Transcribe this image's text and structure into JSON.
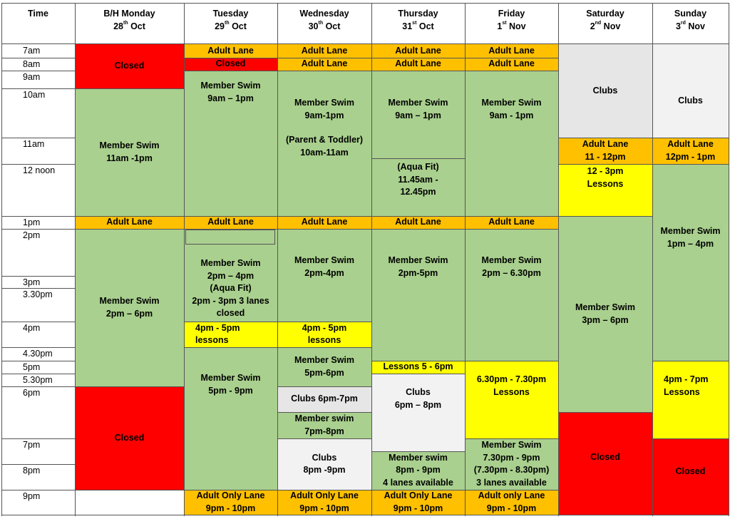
{
  "headers": [
    {
      "l1": "Time",
      "l2": "",
      "sup": "",
      "l2b": ""
    },
    {
      "l1": "B/H Monday",
      "l2": "28",
      "sup": "th",
      "l2b": " Oct"
    },
    {
      "l1": "Tuesday",
      "l2": "29",
      "sup": "th",
      "l2b": " Oct"
    },
    {
      "l1": "Wednesday",
      "l2": "30",
      "sup": "th",
      "l2b": " Oct"
    },
    {
      "l1": "Thursday",
      "l2": "31",
      "sup": "st",
      "l2b": " Oct"
    },
    {
      "l1": "Friday",
      "l2": "1",
      "sup": "st",
      "l2b": " Nov"
    },
    {
      "l1": "Saturday",
      "l2": "2",
      "sup": "nd",
      "l2b": " Nov"
    },
    {
      "l1": "Sunday",
      "l2": "3",
      "sup": "rd",
      "l2b": " Nov"
    }
  ],
  "times": [
    "7am",
    "8am",
    "9am",
    "10am",
    "11am",
    "12 noon",
    "1pm",
    "2pm",
    "3pm",
    "3.30pm",
    "4pm",
    "4.30pm",
    "5pm",
    "5.30pm",
    "6pm",
    "7pm",
    "8pm",
    "9pm"
  ],
  "colors": {
    "green": "#a9d08e",
    "orange": "#ffc000",
    "red": "#ff0000",
    "yellow": "#ffff00",
    "grey": "#e7e6e6",
    "light": "#f2f2f2"
  },
  "cells": {
    "mon": {
      "closed_am": [
        "Closed"
      ],
      "member_am": [
        "Member Swim",
        "11am -1pm"
      ],
      "adult_1pm": [
        "Adult Lane"
      ],
      "member_pm": [
        "Member Swim",
        "2pm – 6pm"
      ],
      "closed_pm": [
        "Closed"
      ]
    },
    "tue": {
      "adult_7": [
        "Adult Lane"
      ],
      "closed_8": [
        "Closed"
      ],
      "member_am": [
        "Member Swim",
        "9am – 1pm"
      ],
      "adult_1pm": [
        "Adult Lane"
      ],
      "member_pm": [
        "Member Swim",
        "2pm – 4pm",
        "(Aqua Fit)",
        "2pm - 3pm 3 lanes",
        "closed"
      ],
      "lessons_4": [
        "4pm - 5pm",
        "lessons"
      ],
      "member_eve": [
        "Member Swim",
        "5pm - 9pm"
      ],
      "adult_only": [
        "Adult Only Lane",
        "9pm - 10pm"
      ]
    },
    "wed": {
      "adult_7": [
        "Adult Lane"
      ],
      "adult_8": [
        "Adult Lane"
      ],
      "member_am": [
        "Member Swim",
        "9am-1pm",
        "",
        "(Parent & Toddler)",
        "10am-11am"
      ],
      "adult_1pm": [
        "Adult Lane"
      ],
      "member_pm": [
        "Member Swim",
        "2pm-4pm"
      ],
      "lessons_4": [
        "4pm - 5pm",
        "lessons"
      ],
      "member_5": [
        "Member Swim",
        "5pm-6pm"
      ],
      "clubs_6": [
        "Clubs 6pm-7pm"
      ],
      "member_7": [
        "Member swim",
        "7pm-8pm"
      ],
      "clubs_8": [
        "Clubs",
        "8pm -9pm"
      ],
      "adult_only": [
        "Adult Only Lane",
        "9pm - 10pm"
      ]
    },
    "thu": {
      "adult_7": [
        "Adult Lane"
      ],
      "adult_8": [
        "Adult Lane"
      ],
      "member_am": [
        "Member Swim",
        "9am – 1pm"
      ],
      "aquafit": [
        "(Aqua Fit)",
        "11.45am -",
        "12.45pm"
      ],
      "adult_1pm": [
        "Adult Lane"
      ],
      "member_pm": [
        "Member Swim",
        "2pm-5pm"
      ],
      "lessons_5": [
        "Lessons 5 - 6pm"
      ],
      "clubs_6": [
        "Clubs",
        "6pm – 8pm"
      ],
      "member_8": [
        "Member swim",
        "8pm - 9pm",
        "4 lanes available"
      ],
      "adult_only": [
        "Adult Only Lane",
        "9pm - 10pm"
      ]
    },
    "fri": {
      "adult_7": [
        "Adult Lane"
      ],
      "adult_8": [
        "Adult Lane"
      ],
      "member_am": [
        "Member Swim",
        "9am - 1pm"
      ],
      "adult_1pm": [
        "Adult Lane"
      ],
      "member_pm": [
        "Member Swim",
        "2pm – 6.30pm"
      ],
      "lessons": [
        "6.30pm - 7.30pm",
        "Lessons"
      ],
      "member_eve": [
        "Member Swim",
        "7.30pm - 9pm",
        "(7.30pm - 8.30pm)",
        "3 lanes available"
      ],
      "adult_only": [
        "Adult only Lane",
        "9pm - 10pm"
      ]
    },
    "sat": {
      "clubs": [
        "Clubs"
      ],
      "adult_11": [
        "Adult Lane",
        "11 - 12pm"
      ],
      "lessons": [
        "12 - 3pm",
        "Lessons"
      ],
      "member": [
        "Member Swim",
        "3pm – 6pm"
      ],
      "closed": [
        "Closed"
      ]
    },
    "sun": {
      "clubs": [
        "Clubs"
      ],
      "adult_12": [
        "Adult Lane",
        "12pm - 1pm"
      ],
      "member": [
        "Member Swim",
        "1pm – 4pm"
      ],
      "lessons": [
        "4pm - 7pm",
        "Lessons"
      ],
      "closed": [
        "Closed"
      ]
    }
  }
}
